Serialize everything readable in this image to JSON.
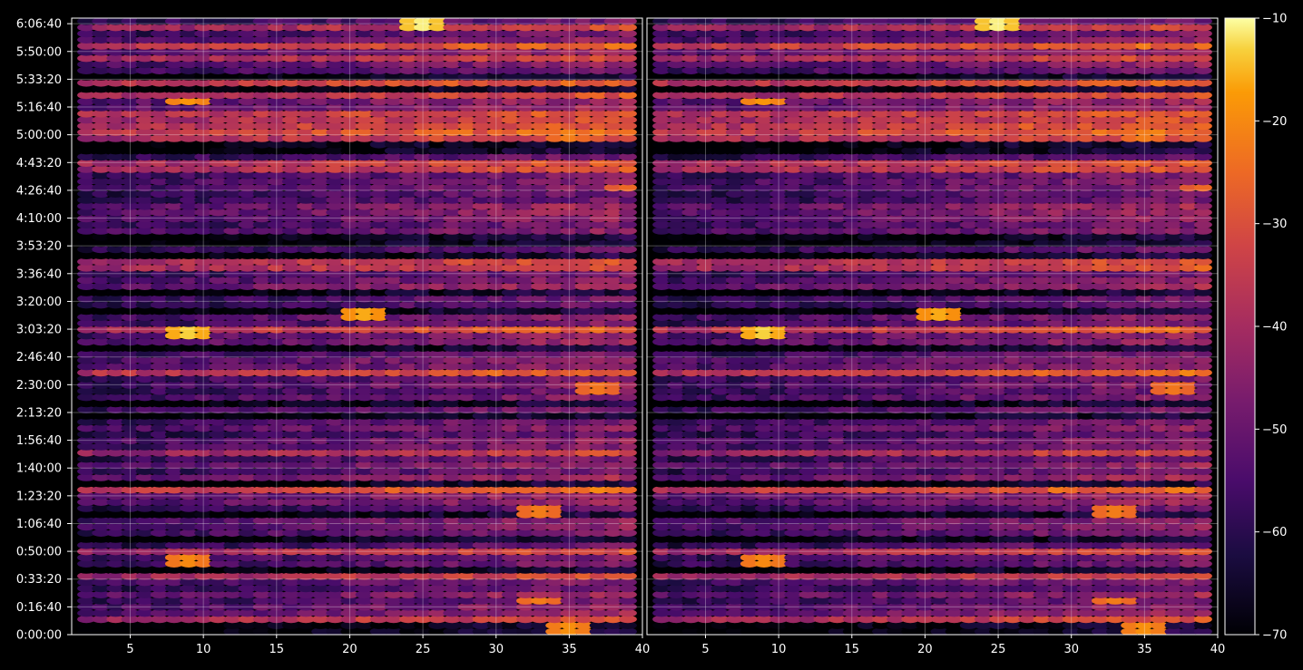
{
  "chart_data": [
    {
      "type": "heatmap",
      "panel": "left",
      "title": "",
      "xlabel": "",
      "ylabel": "",
      "xlim": [
        1,
        40
      ],
      "ylim": [
        0,
        22200
      ],
      "grid": true,
      "x_ticks": [
        5,
        10,
        15,
        20,
        25,
        30,
        35,
        40
      ],
      "x_tick_labels": [
        "5",
        "10",
        "15",
        "20",
        "25",
        "30",
        "35",
        "40"
      ]
    },
    {
      "type": "heatmap",
      "panel": "right",
      "title": "",
      "xlabel": "",
      "ylabel": "",
      "xlim": [
        1,
        40
      ],
      "ylim": [
        0,
        22200
      ],
      "grid": true,
      "x_ticks": [
        5,
        10,
        15,
        20,
        25,
        30,
        35,
        40
      ],
      "x_tick_labels": [
        "5",
        "10",
        "15",
        "20",
        "25",
        "30",
        "35",
        "40"
      ]
    }
  ],
  "y_axis": {
    "tick_values": [
      0,
      1000,
      2000,
      3000,
      4000,
      5000,
      6000,
      7000,
      8000,
      9000,
      10000,
      11000,
      12000,
      13000,
      14000,
      15000,
      16000,
      17000,
      18000,
      19000,
      20000,
      21000,
      22000
    ],
    "tick_labels": [
      "0:00:00",
      "0:16:40",
      "0:33:20",
      "0:50:00",
      "1:06:40",
      "1:23:20",
      "1:40:00",
      "1:56:40",
      "2:13:20",
      "2:30:00",
      "2:46:40",
      "3:03:20",
      "3:20:00",
      "3:36:40",
      "3:53:20",
      "4:10:00",
      "4:26:40",
      "4:43:20",
      "5:00:00",
      "5:16:40",
      "5:33:20",
      "5:50:00",
      "6:06:40"
    ]
  },
  "colorbar": {
    "colormap": "inferno",
    "range": [
      -70,
      -10
    ],
    "tick_values": [
      -70,
      -60,
      -50,
      -40,
      -30,
      -20,
      -10
    ],
    "tick_labels": [
      "−70",
      "−60",
      "−50",
      "−40",
      "−30",
      "−20",
      "−10"
    ]
  },
  "colors": {
    "background": "#000000",
    "grid": "#ffffff",
    "text": "#ffffff"
  },
  "highlights": [
    {
      "t": 21900,
      "x": 25,
      "v": -11
    },
    {
      "t": 19200,
      "x": 9,
      "v": -18
    },
    {
      "t": 10900,
      "x": 9,
      "v": -13
    },
    {
      "t": 11600,
      "x": 21,
      "v": -16
    },
    {
      "t": 2600,
      "x": 9,
      "v": -20
    },
    {
      "t": 300,
      "x": 35,
      "v": -19
    },
    {
      "t": 18000,
      "x": 35,
      "v": -22
    },
    {
      "t": 8900,
      "x": 37,
      "v": -23
    },
    {
      "t": 16100,
      "x": 39,
      "v": -25
    },
    {
      "t": 1200,
      "x": 33,
      "v": -22
    },
    {
      "t": 4400,
      "x": 33,
      "v": -22
    }
  ]
}
